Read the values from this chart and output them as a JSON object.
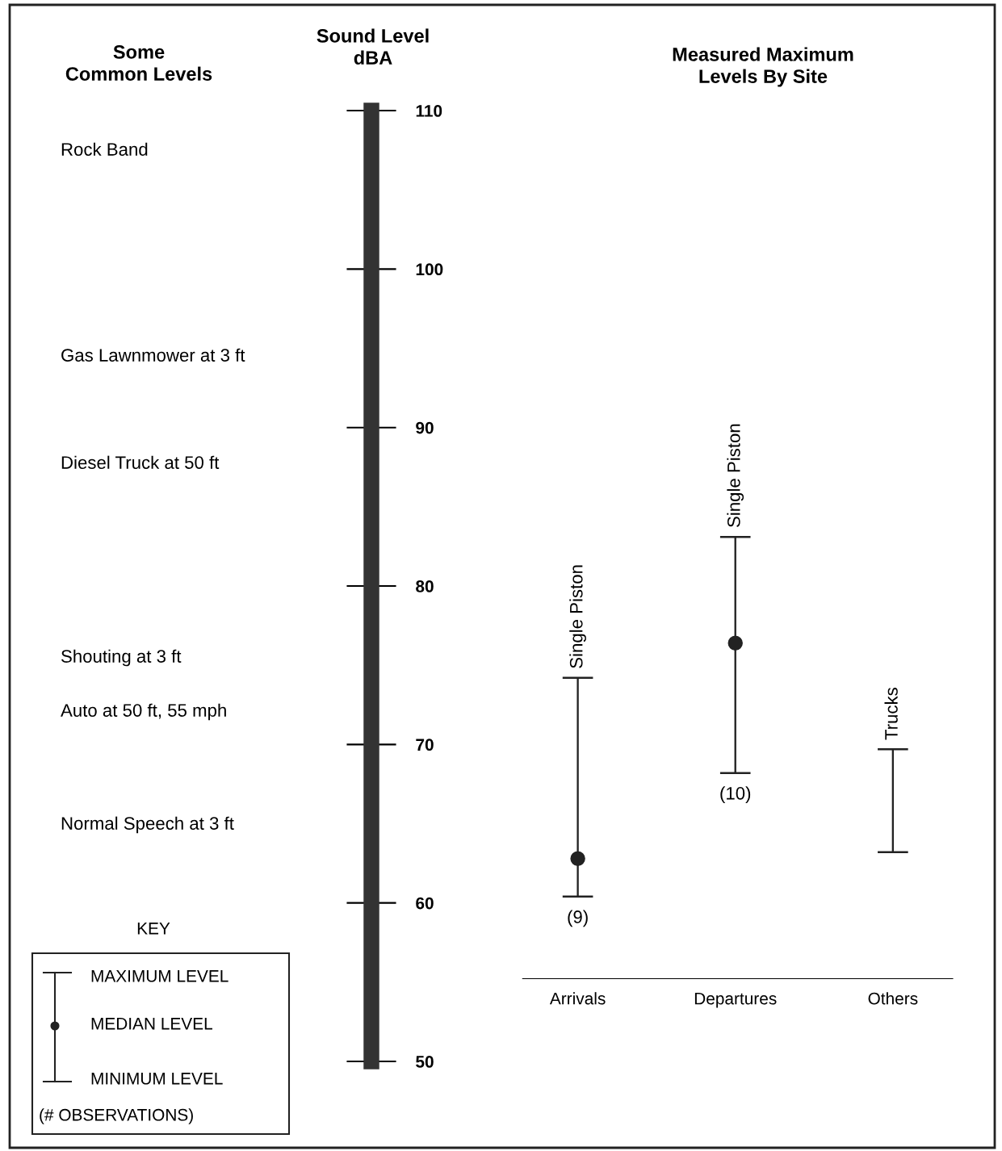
{
  "chart_data": {
    "type": "bar",
    "title": "Measured Maximum\nLevels By Site",
    "ylabel": "Sound Level\ndBA",
    "categories": [
      "Arrivals",
      "Departures",
      "Others"
    ],
    "series": [
      {
        "color": "#222222",
        "base": [
          60.4,
          68.2,
          63.2
        ],
        "values": [
          13.8,
          14.9,
          6.5
        ]
      },
      {
        "type": "scatter",
        "color": "#222222",
        "marker": "circle",
        "values": [
          62.8,
          76.4,
          null
        ]
      }
    ],
    "ylim": [
      50,
      110
    ],
    "yticks": [
      50,
      60,
      70,
      80,
      90,
      100,
      110
    ],
    "annotations": [
      "Some\nCommon Levels",
      "KEY",
      "MAXIMUM LEVEL",
      "MEDIAN LEVEL",
      "MINIMUM LEVEL",
      "(# OBSERVATIONS)",
      "Rock Band",
      "Gas Lawnmower at 3 ft",
      "Diesel Truck at 50 ft",
      "Shouting at 3 ft",
      "Auto at 50 ft, 55 mph",
      "Normal Speech at 3 ft",
      {
        "text": "Single Piston",
        "x": "Arrivals",
        "y": 74.2
      },
      {
        "text": "(9)",
        "x": "Arrivals",
        "y": 60.4
      },
      {
        "text": "Single Piston",
        "x": "Departures",
        "y": 83.1
      },
      {
        "text": "(10)",
        "x": "Departures",
        "y": 68.2
      },
      {
        "text": "Trucks",
        "x": "Others",
        "y": 69.7
      }
    ]
  }
}
